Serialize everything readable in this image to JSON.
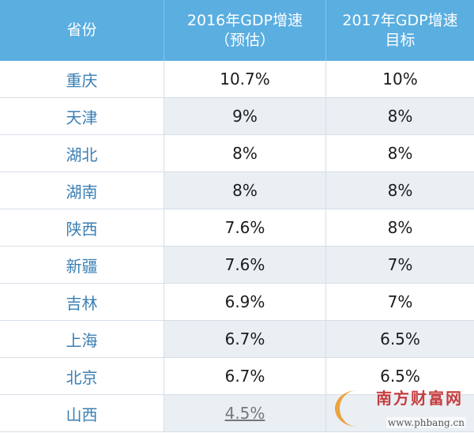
{
  "header": {
    "col1": "省份",
    "col2_line1": "2016年GDP增速",
    "col2_line2": "（预估）",
    "col3_line1": "2017年GDP增速",
    "col3_line2": "目标"
  },
  "rows": [
    {
      "province": "重庆",
      "gdp2016": "10.7%",
      "target2017": "10%"
    },
    {
      "province": "天津",
      "gdp2016": "9%",
      "target2017": "8%"
    },
    {
      "province": "湖北",
      "gdp2016": "8%",
      "target2017": "8%"
    },
    {
      "province": "湖南",
      "gdp2016": "8%",
      "target2017": "8%"
    },
    {
      "province": "陕西",
      "gdp2016": "7.6%",
      "target2017": "8%"
    },
    {
      "province": "新疆",
      "gdp2016": "7.6%",
      "target2017": "7%"
    },
    {
      "province": "吉林",
      "gdp2016": "6.9%",
      "target2017": "7%"
    },
    {
      "province": "上海",
      "gdp2016": "6.7%",
      "target2017": "6.5%"
    },
    {
      "province": "北京",
      "gdp2016": "6.7%",
      "target2017": "6.5%"
    },
    {
      "province": "山西",
      "gdp2016": "4.5%",
      "target2017": ""
    }
  ],
  "watermark": {
    "title": "南方财富网",
    "url": "www.phbang.cn"
  },
  "colors": {
    "header_bg": "#5aaee0",
    "province_text": "#3a7fb4",
    "alt_row_bg": "#eaeff4"
  }
}
